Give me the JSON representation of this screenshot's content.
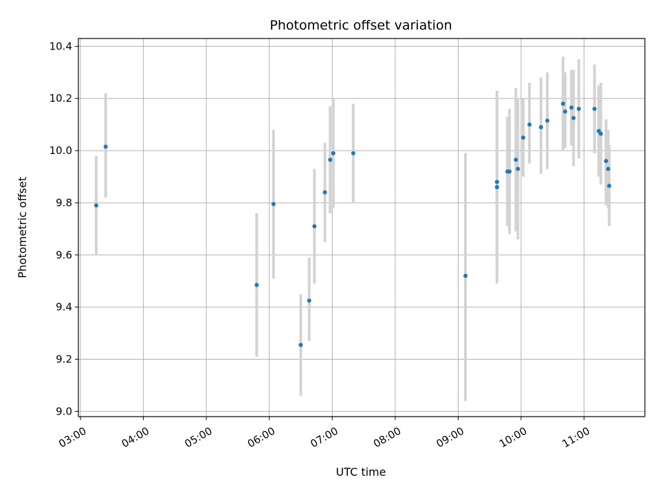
{
  "chart_data": {
    "type": "scatter",
    "title": "Photometric offset variation",
    "xlabel": "UTC time",
    "ylabel": "Photometric offset",
    "x_unit": "UTC hour",
    "xlim": [
      "02:58",
      "11:58"
    ],
    "ylim": [
      8.98,
      10.43
    ],
    "x_ticks": [
      "03:00",
      "04:00",
      "05:00",
      "06:00",
      "07:00",
      "08:00",
      "09:00",
      "10:00",
      "11:00"
    ],
    "y_ticks": [
      9.0,
      9.2,
      9.4,
      9.6,
      9.8,
      10.0,
      10.2,
      10.4
    ],
    "y_tick_labels": [
      "9.0",
      "9.2",
      "9.4",
      "9.6",
      "9.8",
      "10.0",
      "10.2",
      "10.4"
    ],
    "grid": true,
    "colors": {
      "point": "#1f77b4",
      "errorbar": "#d3d3d3",
      "grid": "#b0b0b0"
    },
    "series": [
      {
        "points": [
          {
            "x": "03:15",
            "y": 9.79,
            "low": 9.6,
            "high": 9.98
          },
          {
            "x": "03:24",
            "y": 10.015,
            "low": 9.82,
            "high": 10.22
          },
          {
            "x": "05:48",
            "y": 9.485,
            "low": 9.21,
            "high": 9.76
          },
          {
            "x": "06:04",
            "y": 9.795,
            "low": 9.51,
            "high": 10.08
          },
          {
            "x": "06:30",
            "y": 9.255,
            "low": 9.06,
            "high": 9.45
          },
          {
            "x": "06:38",
            "y": 9.425,
            "low": 9.27,
            "high": 9.59
          },
          {
            "x": "06:43",
            "y": 9.71,
            "low": 9.49,
            "high": 9.93
          },
          {
            "x": "06:53",
            "y": 9.84,
            "low": 9.65,
            "high": 10.03
          },
          {
            "x": "06:58",
            "y": 9.965,
            "low": 9.76,
            "high": 10.17
          },
          {
            "x": "07:01",
            "y": 9.99,
            "low": 9.78,
            "high": 10.2
          },
          {
            "x": "07:20",
            "y": 9.99,
            "low": 9.8,
            "high": 10.18
          },
          {
            "x": "09:07",
            "y": 9.52,
            "low": 9.04,
            "high": 9.99
          },
          {
            "x": "09:37",
            "y": 9.86,
            "low": 9.49,
            "high": 10.23
          },
          {
            "x": "09:37",
            "y": 9.88,
            "low": 9.54,
            "high": 10.21
          },
          {
            "x": "09:47",
            "y": 9.92,
            "low": 9.71,
            "high": 10.13
          },
          {
            "x": "09:49",
            "y": 9.92,
            "low": 9.68,
            "high": 10.16
          },
          {
            "x": "09:55",
            "y": 9.965,
            "low": 9.69,
            "high": 10.24
          },
          {
            "x": "09:57",
            "y": 9.93,
            "low": 9.66,
            "high": 10.2
          },
          {
            "x": "10:02",
            "y": 10.05,
            "low": 9.9,
            "high": 10.2
          },
          {
            "x": "10:08",
            "y": 10.1,
            "low": 9.95,
            "high": 10.26
          },
          {
            "x": "10:19",
            "y": 10.09,
            "low": 9.91,
            "high": 10.28
          },
          {
            "x": "10:25",
            "y": 10.115,
            "low": 9.93,
            "high": 10.3
          },
          {
            "x": "10:40",
            "y": 10.18,
            "low": 10.0,
            "high": 10.36
          },
          {
            "x": "10:42",
            "y": 10.15,
            "low": 10.01,
            "high": 10.3
          },
          {
            "x": "10:48",
            "y": 10.165,
            "low": 10.02,
            "high": 10.31
          },
          {
            "x": "10:50",
            "y": 10.125,
            "low": 9.94,
            "high": 10.31
          },
          {
            "x": "10:55",
            "y": 10.16,
            "low": 9.97,
            "high": 10.35
          },
          {
            "x": "11:10",
            "y": 10.16,
            "low": 9.99,
            "high": 10.33
          },
          {
            "x": "11:14",
            "y": 10.075,
            "low": 9.9,
            "high": 10.25
          },
          {
            "x": "11:16",
            "y": 10.065,
            "low": 9.87,
            "high": 10.26
          },
          {
            "x": "11:21",
            "y": 9.96,
            "low": 9.79,
            "high": 10.12
          },
          {
            "x": "11:23",
            "y": 9.93,
            "low": 9.78,
            "high": 10.08
          },
          {
            "x": "11:24",
            "y": 9.865,
            "low": 9.71,
            "high": 10.02
          }
        ]
      }
    ]
  }
}
